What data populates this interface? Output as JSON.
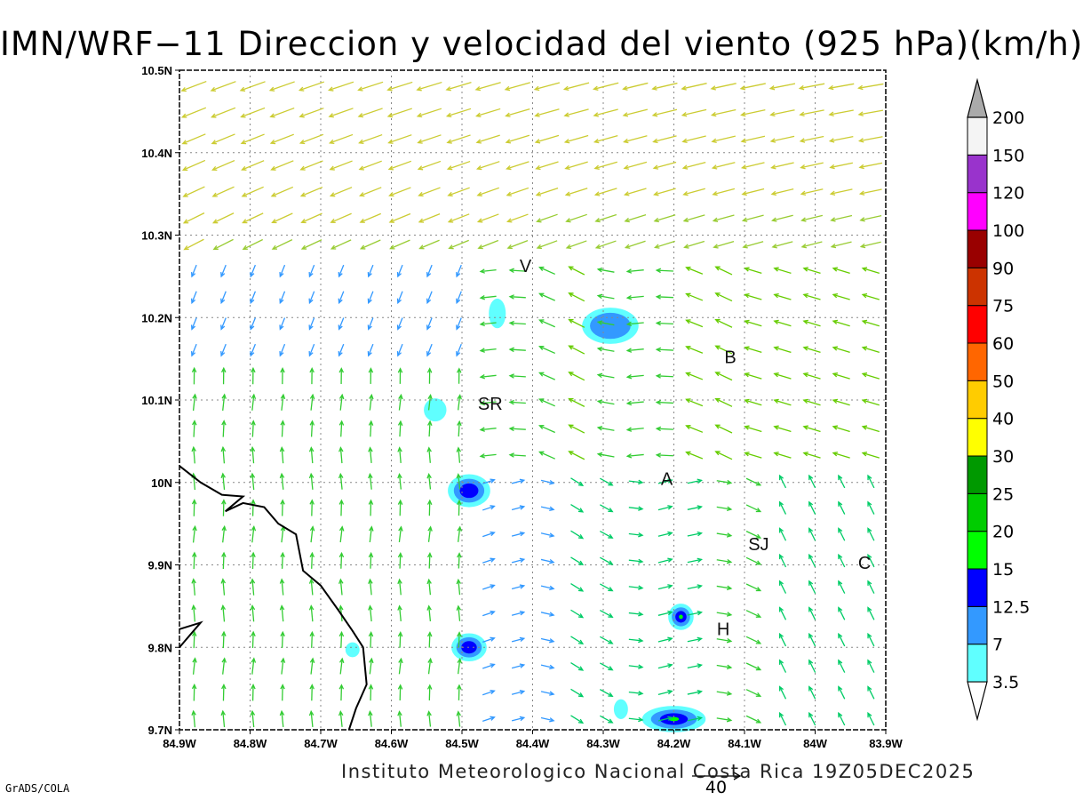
{
  "title": "IMN/WRF−11 Direccion y velocidad del viento (925 hPa)(km/h)",
  "credit": "Instituto Meteorologico Nacional Costa Rica 19Z05DEC2025",
  "software_tag": "GrADS/COLA",
  "map": {
    "lon_min": -84.9,
    "lon_max": -83.9,
    "lat_min": 9.7,
    "lat_max": 10.5,
    "lon_labels": [
      "84.9W",
      "84.8W",
      "84.7W",
      "84.6W",
      "84.5W",
      "84.4W",
      "84.3W",
      "84.2W",
      "84.1W",
      "84W",
      "83.9W"
    ],
    "lat_labels": [
      "9.7N",
      "9.8N",
      "9.9N",
      "10N",
      "10.1N",
      "10.2N",
      "10.3N",
      "10.4N",
      "10.5N"
    ],
    "cities": [
      {
        "label": "V",
        "lon": -84.41,
        "lat": 10.255
      },
      {
        "label": "B",
        "lon": -84.12,
        "lat": 10.145
      },
      {
        "label": "SR",
        "lon": -84.46,
        "lat": 10.088
      },
      {
        "label": "A",
        "lon": -84.21,
        "lat": 9.997
      },
      {
        "label": "SJ",
        "lon": -84.08,
        "lat": 9.918
      },
      {
        "label": "C",
        "lon": -83.93,
        "lat": 9.895
      },
      {
        "label": "H",
        "lon": -84.13,
        "lat": 9.815
      }
    ],
    "reference_vector": {
      "value": "40",
      "units": "km/h"
    }
  },
  "colorbar": {
    "levels": [
      "3.5",
      "7",
      "12.5",
      "15",
      "20",
      "25",
      "30",
      "40",
      "50",
      "60",
      "75",
      "90",
      "100",
      "120",
      "150",
      "200"
    ],
    "colors": [
      "#60ffff",
      "#3399ff",
      "#0000ff",
      "#00ff00",
      "#00cc00",
      "#009900",
      "#ffff00",
      "#ffcc00",
      "#ff6600",
      "#ff0000",
      "#cc3300",
      "#990000",
      "#ff00ff",
      "#9933cc",
      "#f4f4f4",
      "#aaaaaa"
    ]
  },
  "colors": {
    "coast": "#000000",
    "grid": "#888888"
  }
}
